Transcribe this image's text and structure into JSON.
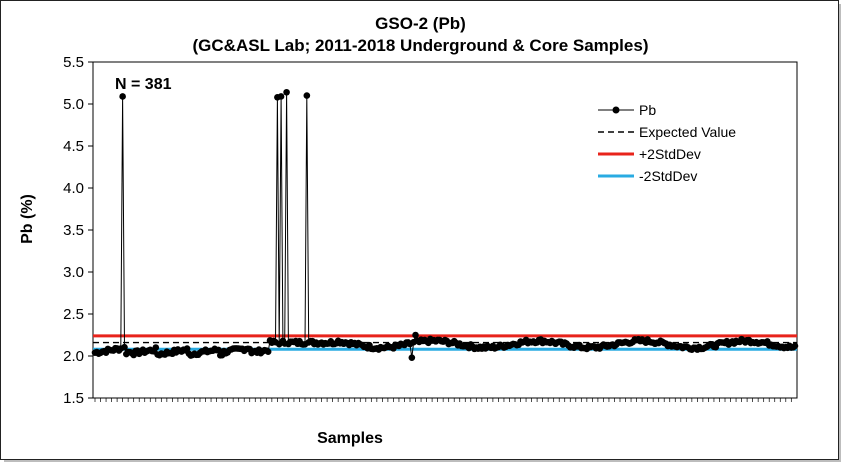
{
  "chart_data": {
    "type": "line",
    "title": "GSO-2 (Pb)",
    "subtitle": "(GC&ASL Lab; 2011-2018 Underground & Core Samples)",
    "xlabel": "Samples",
    "ylabel": "Pb (%)",
    "annotation": "N = 381",
    "ylim": [
      1.5,
      5.5
    ],
    "yticks": [
      "1.5",
      "2.0",
      "2.5",
      "3.0",
      "3.5",
      "4.0",
      "4.5",
      "5.0",
      "5.5"
    ],
    "grid": false,
    "legend_placement": "top-right",
    "n": 381,
    "series": [
      {
        "name": "Pb",
        "color": "#000000",
        "marker": "circle",
        "spikes": [
          [
            15,
            5.09
          ],
          [
            99,
            5.08
          ],
          [
            101,
            5.09
          ],
          [
            104,
            5.14
          ],
          [
            115,
            5.1
          ]
        ],
        "low": [
          [
            172,
            1.98
          ]
        ],
        "high": [
          [
            174,
            2.25
          ]
        ]
      },
      {
        "name": "Expected Value",
        "color": "#000000",
        "dash": true,
        "value": 2.16
      },
      {
        "name": "+2StdDev",
        "color": "#e8231b",
        "value": 2.24
      },
      {
        "name": "-2StdDev",
        "color": "#29abe2",
        "value": 2.08
      }
    ]
  }
}
